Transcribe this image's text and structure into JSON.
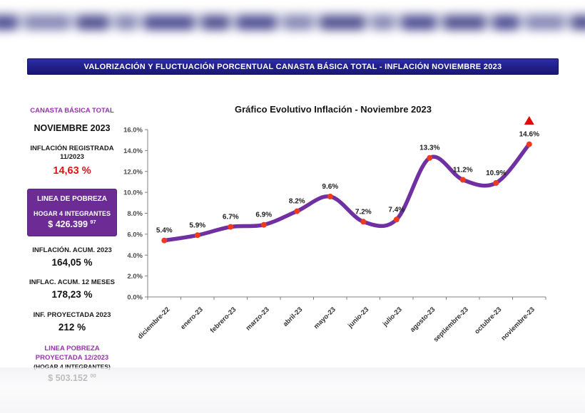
{
  "banner": {
    "title": "VALORIZACIÓN Y FLUCTUACIÓN PORCENTUAL CANASTA BÁSICA TOTAL - INFLACIÓN NOVIEMBRE 2023"
  },
  "sidebar": {
    "basket_label": "CANASTA BÁSICA TOTAL",
    "month": "NOVIEMBRE 2023",
    "registered_line1": "INFLACIÓN REGISTRADA",
    "registered_line2": "11/2023",
    "registered_value": "14,63 %",
    "poverty_box": {
      "title": "LINEA DE POBREZA",
      "subtitle": "HOGAR 4 INTEGRANTES",
      "amount": "$ 426.399",
      "amount_sup": "97"
    },
    "acum_2023_label": "INFLACIÓN. ACUM. 2023",
    "acum_2023_value": "164,05 %",
    "acum_12m_label": "INFLAC. ACUM. 12 MESES",
    "acum_12m_value": "178,23 %",
    "projected_label": "INF. PROYECTADA 2023",
    "projected_value": "212 %",
    "poverty_projected": {
      "line1": "LINEA POBREZA",
      "line2": "PROYECTADA 12/2023",
      "line3": "(HOGAR 4 INTEGRANTES)",
      "amount": "$ 503.152",
      "amount_sup": "00"
    }
  },
  "chart_data": {
    "type": "line",
    "title": "Gráfico Evolutivo Inflación - Noviembre 2023",
    "categories": [
      "diciembre-22",
      "enero-23",
      "febrero-23",
      "marzo-23",
      "abril-23",
      "mayo-23",
      "junio-23",
      "julio-23",
      "agosto-23",
      "septiembre-23",
      "octubre-23",
      "noviembre-23"
    ],
    "values": [
      5.4,
      5.9,
      6.7,
      6.9,
      8.2,
      9.6,
      7.2,
      7.4,
      13.3,
      11.2,
      10.9,
      14.6
    ],
    "point_labels": [
      "5.4%",
      "5.9%",
      "6.7%",
      "6.9%",
      "8.2%",
      "9.6%",
      "7.2%",
      "7.4%",
      "13.3%",
      "11.2%",
      "10.9%",
      "14.6%"
    ],
    "xlabel": "",
    "ylabel": "",
    "ylim": [
      0,
      16
    ],
    "ytick_step": 2,
    "ytick_labels": [
      "0.0%",
      "2.0%",
      "4.0%",
      "6.0%",
      "8.0%",
      "10.0%",
      "12.0%",
      "14.0%",
      "16.0%"
    ],
    "grid": false,
    "legend": false,
    "line_color": "#7130a1",
    "marker_color": "#ee3a1e",
    "flag_color": "#df0b0b",
    "last_point_flag": "red-triangle-up"
  }
}
